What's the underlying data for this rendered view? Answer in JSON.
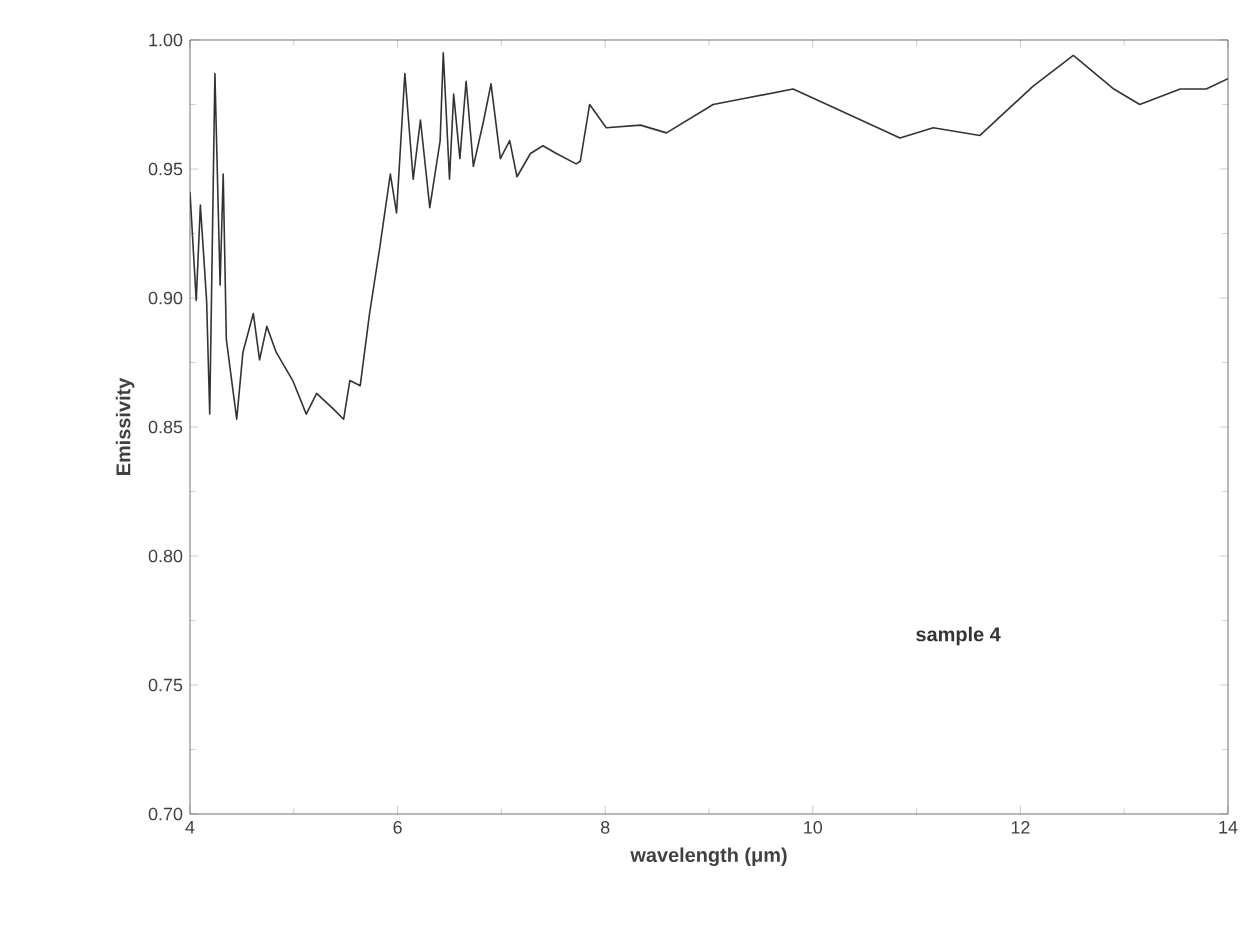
{
  "chart_data": {
    "type": "line",
    "xlabel": "wavelength (μm)",
    "ylabel": "Emissivity",
    "x": [
      4.0,
      4.06,
      4.1,
      4.16,
      4.19,
      4.24,
      4.29,
      4.32,
      4.35,
      4.45,
      4.51,
      4.61,
      4.67,
      4.74,
      4.83,
      4.99,
      5.12,
      5.22,
      5.38,
      5.48,
      5.54,
      5.64,
      5.73,
      5.83,
      5.93,
      5.99,
      6.07,
      6.15,
      6.22,
      6.31,
      6.41,
      6.44,
      6.5,
      6.54,
      6.6,
      6.66,
      6.73,
      6.83,
      6.9,
      6.99,
      7.08,
      7.15,
      7.28,
      7.4,
      7.53,
      7.72,
      7.76,
      7.85,
      8.01,
      8.34,
      8.59,
      9.04,
      9.3,
      9.81,
      10.19,
      10.84,
      11.16,
      11.61,
      12.12,
      12.51,
      12.9,
      13.15,
      13.54,
      13.79,
      14.0
    ],
    "series": [
      {
        "color": "#333333",
        "values": [
          0.941,
          0.899,
          0.936,
          0.899,
          0.855,
          0.987,
          0.905,
          0.948,
          0.884,
          0.853,
          0.879,
          0.894,
          0.876,
          0.889,
          0.879,
          0.868,
          0.855,
          0.863,
          0.857,
          0.853,
          0.868,
          0.866,
          0.894,
          0.92,
          0.948,
          0.933,
          0.987,
          0.946,
          0.969,
          0.935,
          0.961,
          0.995,
          0.946,
          0.979,
          0.954,
          0.984,
          0.951,
          0.969,
          0.983,
          0.954,
          0.961,
          0.947,
          0.956,
          0.959,
          0.956,
          0.952,
          0.953,
          0.975,
          0.966,
          0.967,
          0.964,
          0.975,
          0.977,
          0.981,
          0.974,
          0.962,
          0.966,
          0.963,
          0.982,
          0.994,
          0.981,
          0.975,
          0.981,
          0.981,
          0.985
        ]
      }
    ],
    "annotations": [
      "sample 4"
    ],
    "xlim": [
      4,
      14
    ],
    "xticks": [
      4,
      6,
      8,
      10,
      12,
      14
    ],
    "ylim": [
      0.7,
      1.0
    ],
    "yticks": [
      {
        "value": 0.7,
        "label": "0.70"
      },
      {
        "value": 0.75,
        "label": "0.75"
      },
      {
        "value": 0.8,
        "label": "0.80"
      },
      {
        "value": 0.85,
        "label": "0.85"
      },
      {
        "value": 0.9,
        "label": "0.90"
      },
      {
        "value": 0.95,
        "label": "0.95"
      },
      {
        "value": 1.0,
        "label": "1.00"
      }
    ],
    "marker": "none",
    "line_style": "solid"
  }
}
